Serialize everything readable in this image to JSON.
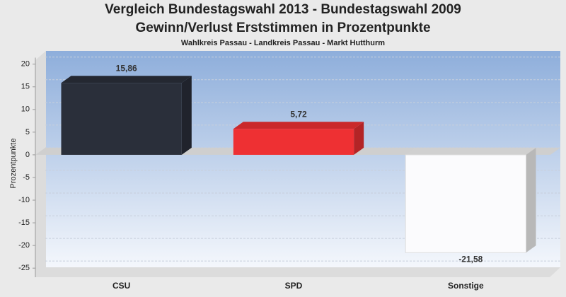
{
  "chart_data": {
    "type": "bar3d",
    "title": "Vergleich Bundestagswahl 2013 - Bundestagswahl 2009",
    "subtitle": "Gewinn/Verlust Erststimmen in Prozentpunkte",
    "caption": "Wahlkreis Passau - Landkreis Passau - Markt Hutthurm",
    "y_label": "Prozentpunkte",
    "categories": [
      "CSU",
      "SPD",
      "Sonstige"
    ],
    "values": [
      15.86,
      5.72,
      -21.58
    ],
    "value_labels": [
      "15,86",
      "5,72",
      "-21,58"
    ],
    "colors": [
      "#2a2f3a",
      "#ee3033",
      "#fbfbfd"
    ],
    "ylim": [
      -27,
      23
    ],
    "yticks": [
      -25,
      -20,
      -15,
      -10,
      -5,
      0,
      5,
      10,
      15,
      20
    ],
    "grid": true
  }
}
